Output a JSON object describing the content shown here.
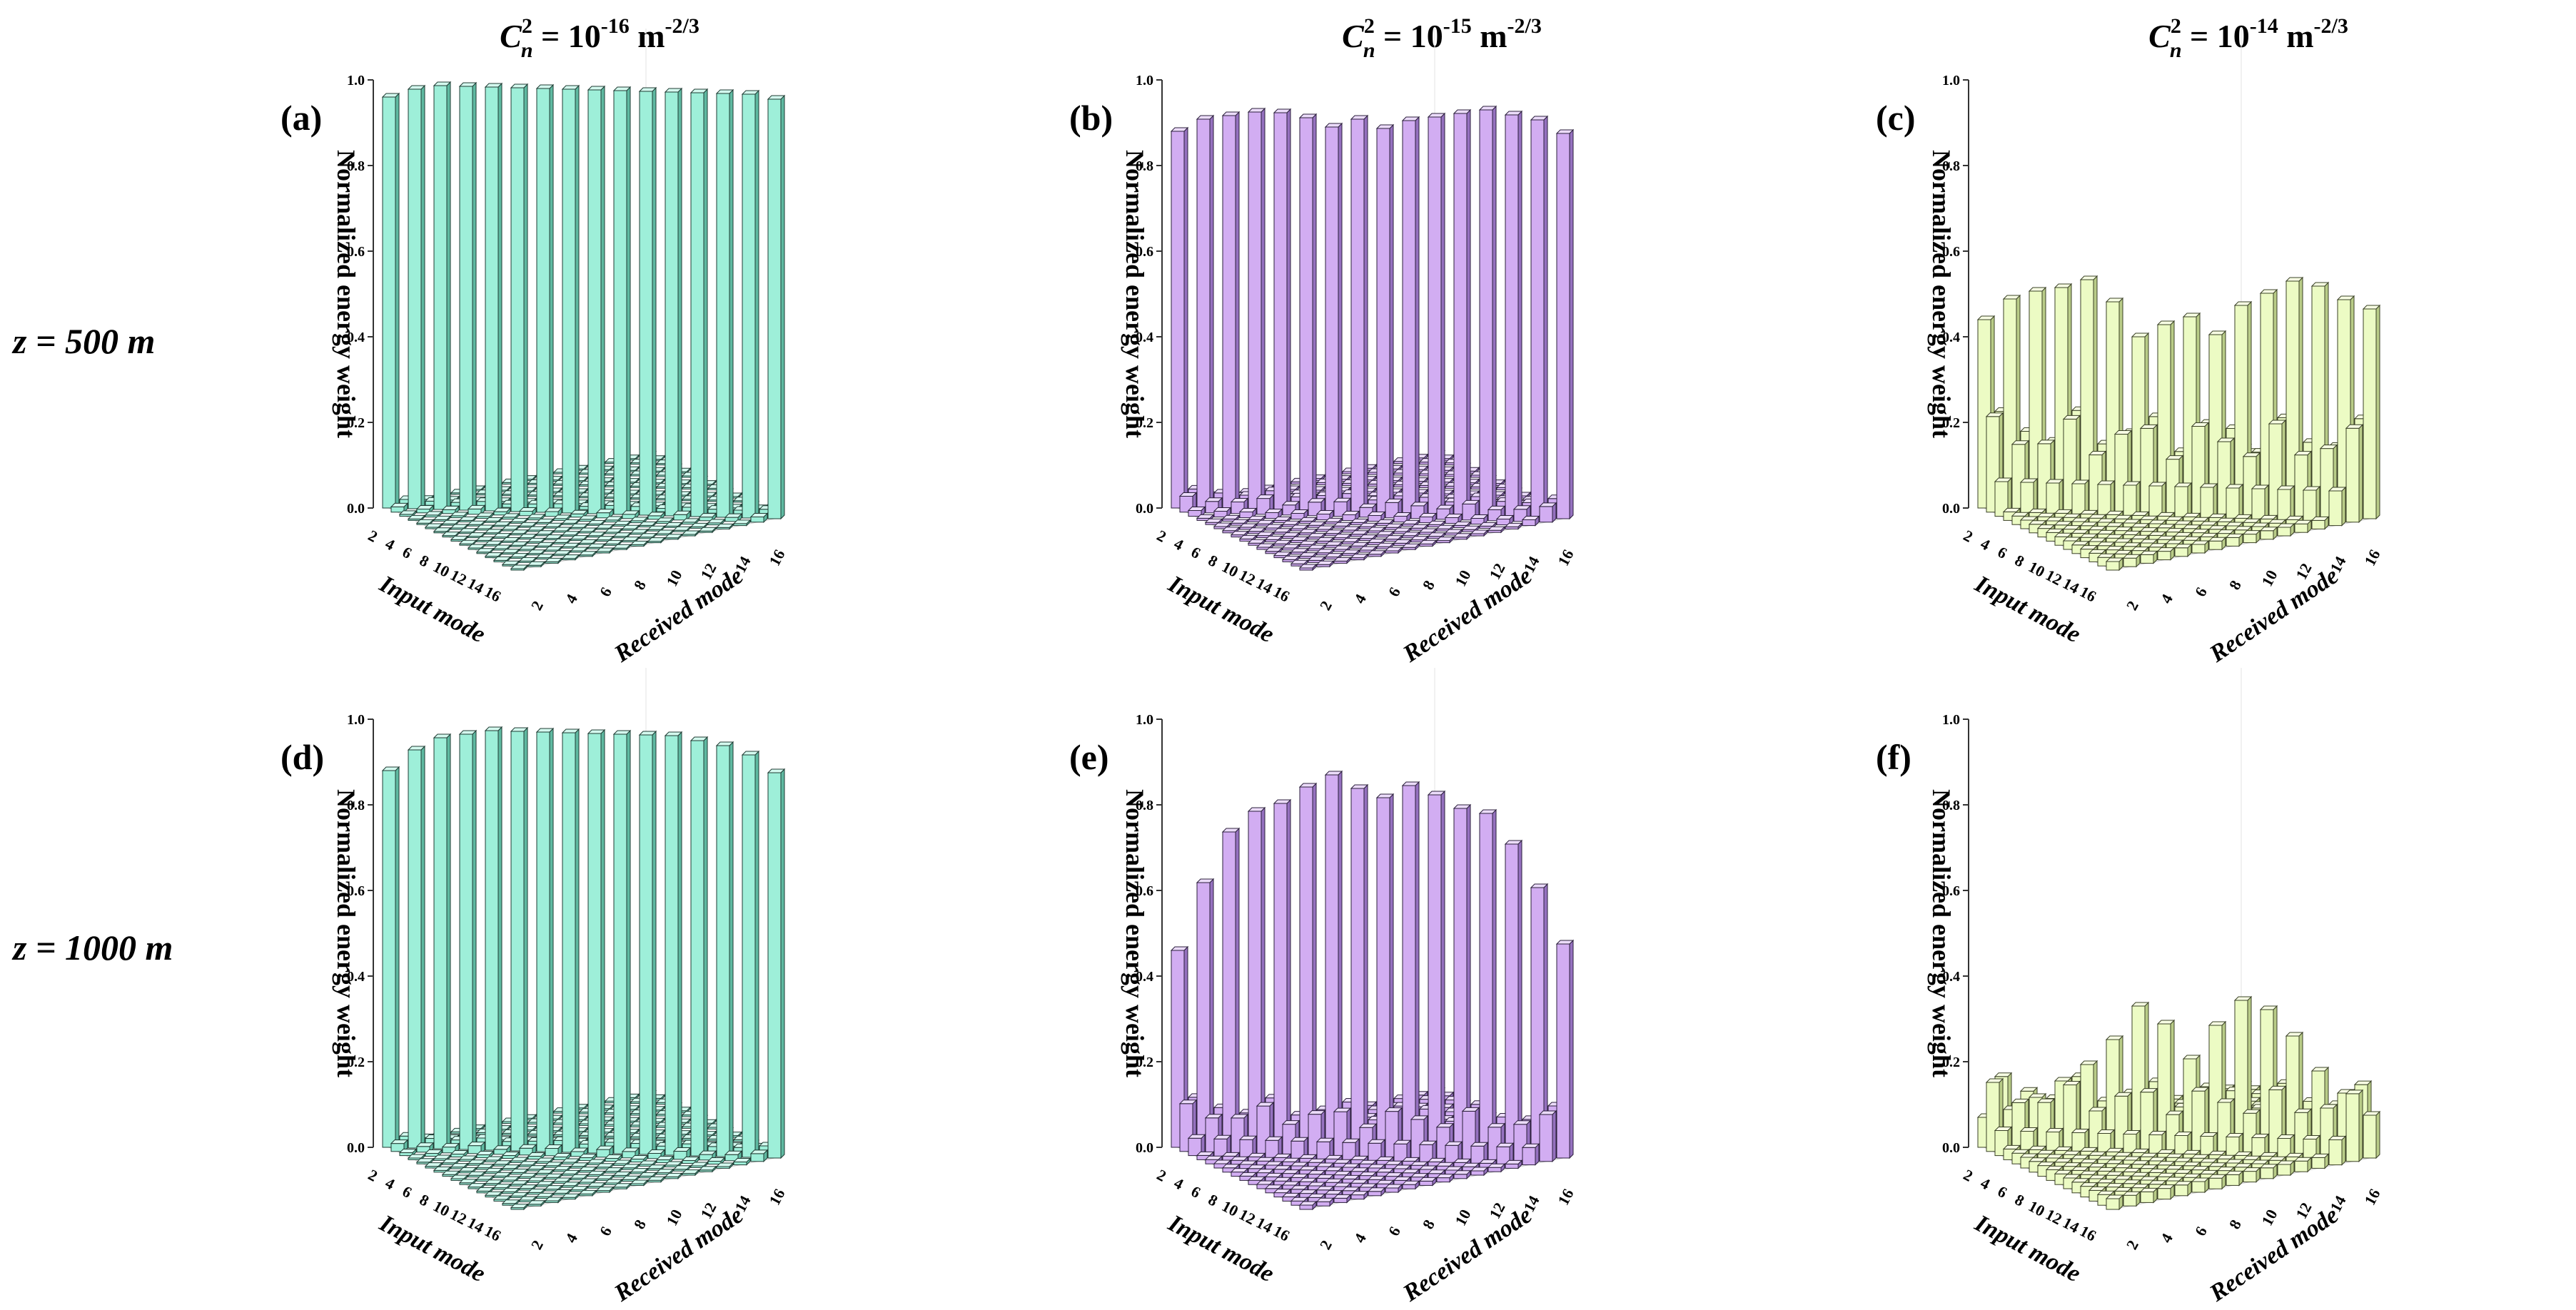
{
  "figure": {
    "column_titles": [
      {
        "main": "C",
        "sub": "n",
        "sup": "2",
        "rest": " = 10",
        "exp": "-16",
        "unit": " m",
        "unit_exp": "-2/3"
      },
      {
        "main": "C",
        "sub": "n",
        "sup": "2",
        "rest": " = 10",
        "exp": "-15",
        "unit": " m",
        "unit_exp": "-2/3"
      },
      {
        "main": "C",
        "sub": "n",
        "sup": "2",
        "rest": " = 10",
        "exp": "-14",
        "unit": " m",
        "unit_exp": "-2/3"
      }
    ],
    "row_labels": [
      "z = 500 m",
      "z = 1000 m"
    ],
    "colors": {
      "mint": {
        "front": "#9eefd9",
        "side": "#5fb9a1",
        "top": "#d4faef",
        "edge": "#1f3b33"
      },
      "lavender": {
        "front": "#d2adf2",
        "side": "#9571bf",
        "top": "#ecdcfb",
        "edge": "#2b1f3b"
      },
      "yellow": {
        "front": "#ecfbc4",
        "side": "#b9cc88",
        "top": "#f8ffe4",
        "edge": "#3a4026"
      }
    }
  },
  "chart_data": [
    {
      "type": "bar3d",
      "panel_label": "(a)",
      "title": "C_n^2 = 10^-16 m^-2/3",
      "row": "z = 500 m",
      "color": "mint",
      "ylabel": "Normalized energy weight",
      "xlabel": "Input mode",
      "zlabel": "Received mode",
      "ylim": [
        0,
        1.0
      ],
      "yticks": [
        "0.0",
        "0.2",
        "0.4",
        "0.6",
        "0.8",
        "1.0"
      ],
      "mode_ticks": [
        "2",
        "4",
        "6",
        "8",
        "10",
        "12",
        "14",
        "16"
      ],
      "diagonal": [
        0.96,
        0.98,
        0.99,
        0.99,
        0.99,
        0.99,
        0.99,
        0.99,
        0.99,
        0.99,
        0.99,
        0.99,
        0.99,
        0.99,
        0.99,
        0.98
      ],
      "neighbor": 0.01,
      "background": 0.003
    },
    {
      "type": "bar3d",
      "panel_label": "(b)",
      "title": "C_n^2 = 10^-15 m^-2/3",
      "row": "z = 500 m",
      "color": "lavender",
      "ylabel": "Normalized energy weight",
      "xlabel": "Input mode",
      "zlabel": "Received mode",
      "ylim": [
        0,
        1.0
      ],
      "yticks": [
        "0.0",
        "0.2",
        "0.4",
        "0.6",
        "0.8",
        "1.0"
      ],
      "mode_ticks": [
        "2",
        "4",
        "6",
        "8",
        "10",
        "12",
        "14",
        "16"
      ],
      "diagonal": [
        0.88,
        0.91,
        0.92,
        0.93,
        0.93,
        0.92,
        0.9,
        0.92,
        0.9,
        0.92,
        0.93,
        0.94,
        0.95,
        0.94,
        0.93,
        0.9
      ],
      "neighbor": 0.03,
      "background": 0.005
    },
    {
      "type": "bar3d",
      "panel_label": "(c)",
      "title": "C_n^2 = 10^-14 m^-2/3",
      "row": "z = 500 m",
      "color": "yellow",
      "ylabel": "Normalized energy weight",
      "xlabel": "Input mode",
      "zlabel": "Received mode",
      "ylim": [
        0,
        1.0
      ],
      "yticks": [
        "0.0",
        "0.2",
        "0.4",
        "0.6",
        "0.8",
        "1.0"
      ],
      "mode_ticks": [
        "2",
        "4",
        "6",
        "8",
        "10",
        "12",
        "14",
        "16"
      ],
      "diagonal": [
        0.44,
        0.49,
        0.51,
        0.52,
        0.54,
        0.49,
        0.41,
        0.44,
        0.46,
        0.42,
        0.49,
        0.52,
        0.55,
        0.54,
        0.51,
        0.49
      ],
      "neighbor": 0.18,
      "background": 0.02
    },
    {
      "type": "bar3d",
      "panel_label": "(d)",
      "title": "C_n^2 = 10^-16 m^-2/3",
      "row": "z = 1000 m",
      "color": "mint",
      "ylabel": "Normalized energy weight",
      "xlabel": "Input mode",
      "zlabel": "Received mode",
      "ylim": [
        0,
        1.0
      ],
      "yticks": [
        "0.0",
        "0.2",
        "0.4",
        "0.6",
        "0.8",
        "1.0"
      ],
      "mode_ticks": [
        "2",
        "4",
        "6",
        "8",
        "10",
        "12",
        "14",
        "16"
      ],
      "diagonal": [
        0.88,
        0.93,
        0.96,
        0.97,
        0.98,
        0.98,
        0.98,
        0.98,
        0.98,
        0.98,
        0.98,
        0.98,
        0.97,
        0.96,
        0.94,
        0.9
      ],
      "neighbor": 0.015,
      "background": 0.004
    },
    {
      "type": "bar3d",
      "panel_label": "(e)",
      "title": "C_n^2 = 10^-15 m^-2/3",
      "row": "z = 1000 m",
      "color": "lavender",
      "ylabel": "Normalized energy weight",
      "xlabel": "Input mode",
      "zlabel": "Received mode",
      "ylim": [
        0,
        1.0
      ],
      "yticks": [
        "0.0",
        "0.2",
        "0.4",
        "0.6",
        "0.8",
        "1.0"
      ],
      "mode_ticks": [
        "2",
        "4",
        "6",
        "8",
        "10",
        "12",
        "14",
        "16"
      ],
      "diagonal": [
        0.46,
        0.62,
        0.74,
        0.79,
        0.81,
        0.85,
        0.88,
        0.85,
        0.83,
        0.86,
        0.84,
        0.81,
        0.8,
        0.73,
        0.63,
        0.5
      ],
      "neighbor": 0.09,
      "background": 0.01
    },
    {
      "type": "bar3d",
      "panel_label": "(f)",
      "title": "C_n^2 = 10^-14 m^-2/3",
      "row": "z = 1000 m",
      "color": "yellow",
      "ylabel": "Normalized energy weight",
      "xlabel": "Input mode",
      "zlabel": "Received mode",
      "ylim": [
        0,
        1.0
      ],
      "yticks": [
        "0.0",
        "0.2",
        "0.4",
        "0.6",
        "0.8",
        "1.0"
      ],
      "mode_ticks": [
        "2",
        "4",
        "6",
        "8",
        "10",
        "12",
        "14",
        "16"
      ],
      "diagonal": [
        0.07,
        0.09,
        0.12,
        0.16,
        0.2,
        0.26,
        0.34,
        0.3,
        0.22,
        0.3,
        0.36,
        0.34,
        0.28,
        0.2,
        0.15,
        0.1
      ],
      "neighbor": 0.13,
      "background": 0.025
    }
  ]
}
